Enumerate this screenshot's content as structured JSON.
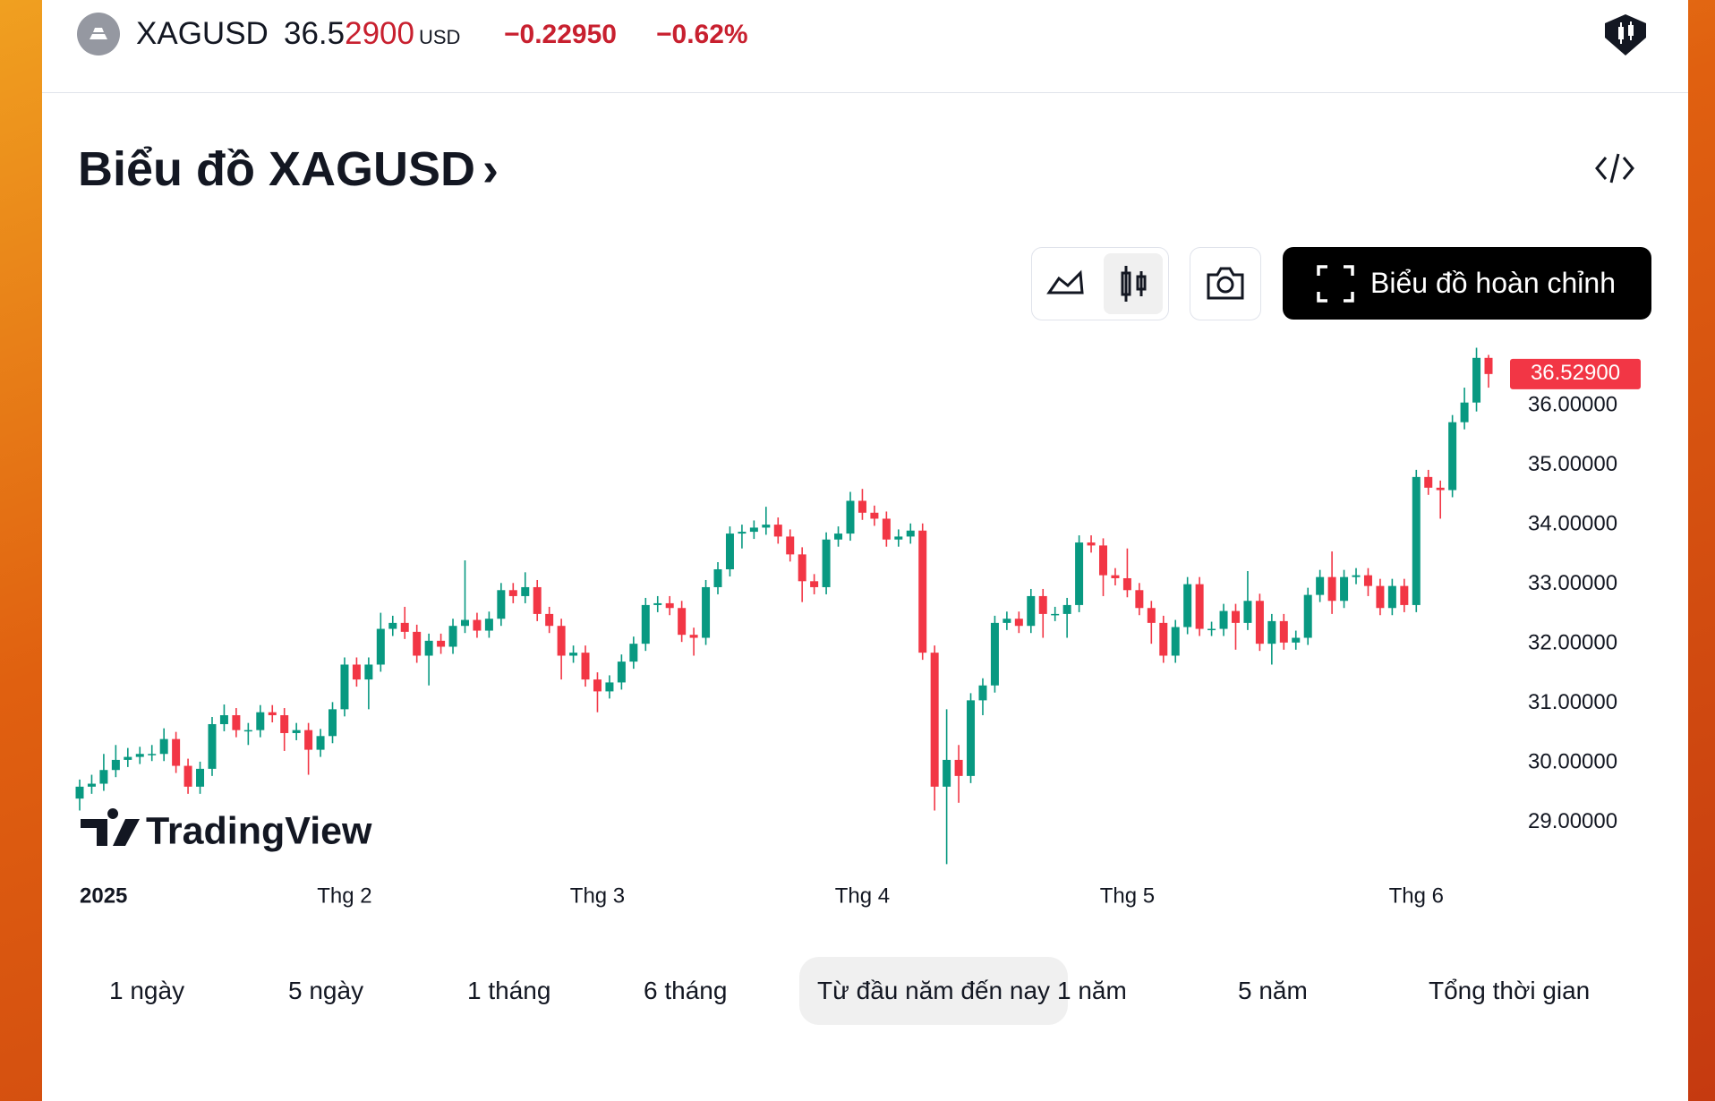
{
  "header": {
    "symbol": "XAGUSD",
    "price_main": "36.5",
    "price_changed": "2900",
    "currency": "USD",
    "change": "−0.22950",
    "change_percent": "−0.62%"
  },
  "title": "Biểu đồ XAGUSD",
  "toolbar": {
    "full_chart_button": "Biểu đồ hoàn chỉnh"
  },
  "watermark": "TradingView",
  "ranges": [
    "1 ngày",
    "5 ngày",
    "1 tháng",
    "6 tháng",
    "Từ đầu năm đến nay",
    "1 năm",
    "5 năm",
    "Tổng thời gian"
  ],
  "selected_range": 4,
  "chart_data": {
    "type": "candlestick",
    "up_color": "#089981",
    "down_color": "#f23645",
    "xticks": [
      {
        "value": 0,
        "label": "2025"
      },
      {
        "value": 22,
        "label": "Thg 2"
      },
      {
        "value": 43,
        "label": "Thg 3"
      },
      {
        "value": 65,
        "label": "Thg 4"
      },
      {
        "value": 87,
        "label": "Thg 5"
      },
      {
        "value": 111,
        "label": "Thg 6"
      }
    ],
    "ylim": [
      28.2,
      37.0
    ],
    "yticks": [
      {
        "value": 29,
        "label": "29.00000"
      },
      {
        "value": 30,
        "label": "30.00000"
      },
      {
        "value": 31,
        "label": "31.00000"
      },
      {
        "value": 32,
        "label": "32.00000"
      },
      {
        "value": 33,
        "label": "33.00000"
      },
      {
        "value": 34,
        "label": "34.00000"
      },
      {
        "value": 35,
        "label": "35.00000"
      },
      {
        "value": 36,
        "label": "36.00000"
      }
    ],
    "last_price_label": "36.52900",
    "series": [
      {
        "name": "XAGUSD",
        "open": [
          29.4,
          29.6,
          29.65,
          29.88,
          30.05,
          30.1,
          30.15,
          30.15,
          30.4,
          29.95,
          29.6,
          29.9,
          30.65,
          30.8,
          30.55,
          30.55,
          30.85,
          30.8,
          30.5,
          30.55,
          30.22,
          30.45,
          30.9,
          31.65,
          31.4,
          31.65,
          32.25,
          32.35,
          32.2,
          31.8,
          32.05,
          31.95,
          32.3,
          32.4,
          32.22,
          32.42,
          32.9,
          32.8,
          32.95,
          32.5,
          32.3,
          31.8,
          31.85,
          31.4,
          31.2,
          31.35,
          31.7,
          32.0,
          32.65,
          32.68,
          32.6,
          32.15,
          32.1,
          32.95,
          33.25,
          33.85,
          33.88,
          33.95,
          34.0,
          33.8,
          33.5,
          33.05,
          32.95,
          33.75,
          33.85,
          34.4,
          34.2,
          34.1,
          33.75,
          33.8,
          33.9,
          31.85,
          29.6,
          30.05,
          29.78,
          31.05,
          31.3,
          32.35,
          32.42,
          32.3,
          32.8,
          32.5,
          32.5,
          32.65,
          33.7,
          33.65,
          33.15,
          33.1,
          32.9,
          32.6,
          32.35,
          31.8,
          32.28,
          33.0,
          32.25,
          32.25,
          32.55,
          32.35,
          32.72,
          32.0,
          32.38,
          32.02,
          32.1,
          32.82,
          33.12,
          32.72,
          33.12,
          33.15,
          32.97,
          32.6,
          32.97,
          32.65,
          34.8,
          34.62,
          34.58,
          35.72,
          36.05,
          36.8
        ],
        "high": [
          29.72,
          29.8,
          30.15,
          30.3,
          30.25,
          30.27,
          30.3,
          30.58,
          30.52,
          30.07,
          30.02,
          30.77,
          30.98,
          30.92,
          30.67,
          30.97,
          30.97,
          30.92,
          30.67,
          30.67,
          30.57,
          31.02,
          31.77,
          31.77,
          31.77,
          32.52,
          32.47,
          32.62,
          32.32,
          32.17,
          32.17,
          32.42,
          33.4,
          32.52,
          32.54,
          33.02,
          33.02,
          33.2,
          33.07,
          32.62,
          32.42,
          31.97,
          31.97,
          31.52,
          31.47,
          31.82,
          32.12,
          32.77,
          32.8,
          32.8,
          32.72,
          32.27,
          33.07,
          33.37,
          33.97,
          34.0,
          34.07,
          34.3,
          34.12,
          33.92,
          33.62,
          33.17,
          33.87,
          33.97,
          34.55,
          34.6,
          34.32,
          34.22,
          33.92,
          34.02,
          34.02,
          31.97,
          30.9,
          30.3,
          31.17,
          31.42,
          32.47,
          32.54,
          32.54,
          32.92,
          32.92,
          32.62,
          32.77,
          33.82,
          33.82,
          33.77,
          33.27,
          33.6,
          33.02,
          32.72,
          32.47,
          32.4,
          33.12,
          33.12,
          32.37,
          32.67,
          32.67,
          33.22,
          32.84,
          32.5,
          32.5,
          32.22,
          32.94,
          33.24,
          33.55,
          33.24,
          33.27,
          33.27,
          33.09,
          33.09,
          33.09,
          34.92,
          34.92,
          34.74,
          35.84,
          36.3,
          36.97,
          36.85
        ],
        "low": [
          29.2,
          29.48,
          29.53,
          29.76,
          29.93,
          29.98,
          30.03,
          30.03,
          29.83,
          29.48,
          29.48,
          29.78,
          30.53,
          30.43,
          30.3,
          30.43,
          30.68,
          30.2,
          30.38,
          29.8,
          30.1,
          30.33,
          30.78,
          31.28,
          30.9,
          31.53,
          32.13,
          32.08,
          31.68,
          31.3,
          31.83,
          31.83,
          32.18,
          32.1,
          32.1,
          32.3,
          32.68,
          32.68,
          32.38,
          32.18,
          31.4,
          31.68,
          31.28,
          30.85,
          31.08,
          31.23,
          31.58,
          31.88,
          32.53,
          32.48,
          32.03,
          31.8,
          31.98,
          32.83,
          33.13,
          33.6,
          33.76,
          33.83,
          33.68,
          33.38,
          32.7,
          32.83,
          32.83,
          33.63,
          33.73,
          34.08,
          33.98,
          33.63,
          33.63,
          33.68,
          31.73,
          29.2,
          28.3,
          29.33,
          29.66,
          30.8,
          31.18,
          32.23,
          32.18,
          32.18,
          32.1,
          32.38,
          32.1,
          32.53,
          33.53,
          32.8,
          32.98,
          32.78,
          32.48,
          32.0,
          31.68,
          31.68,
          32.16,
          32.13,
          32.13,
          32.13,
          31.9,
          32.23,
          31.88,
          31.65,
          31.9,
          31.9,
          31.98,
          32.7,
          32.5,
          32.6,
          33.0,
          32.8,
          32.48,
          32.48,
          32.53,
          32.53,
          34.5,
          34.1,
          34.46,
          35.6,
          35.9,
          36.3
        ],
        "close": [
          29.6,
          29.65,
          29.88,
          30.05,
          30.1,
          30.15,
          30.15,
          30.4,
          29.95,
          29.6,
          29.9,
          30.65,
          30.8,
          30.55,
          30.55,
          30.85,
          30.8,
          30.5,
          30.55,
          30.22,
          30.45,
          30.9,
          31.65,
          31.4,
          31.65,
          32.25,
          32.35,
          32.2,
          31.8,
          32.05,
          31.95,
          32.3,
          32.4,
          32.22,
          32.42,
          32.9,
          32.8,
          32.95,
          32.5,
          32.3,
          31.8,
          31.85,
          31.4,
          31.2,
          31.35,
          31.7,
          32.0,
          32.65,
          32.68,
          32.6,
          32.15,
          32.1,
          32.95,
          33.25,
          33.85,
          33.88,
          33.95,
          34.0,
          33.8,
          33.5,
          33.05,
          32.95,
          33.75,
          33.85,
          34.4,
          34.2,
          34.1,
          33.75,
          33.8,
          33.9,
          31.85,
          29.6,
          30.05,
          29.78,
          31.05,
          31.3,
          32.35,
          32.42,
          32.3,
          32.8,
          32.5,
          32.5,
          32.65,
          33.7,
          33.65,
          33.15,
          33.1,
          32.9,
          32.6,
          32.35,
          31.8,
          32.28,
          33.0,
          32.25,
          32.25,
          32.55,
          32.35,
          32.72,
          32.0,
          32.38,
          32.02,
          32.1,
          32.82,
          33.12,
          32.72,
          33.12,
          33.15,
          32.97,
          32.6,
          32.97,
          32.65,
          34.8,
          34.62,
          34.58,
          35.72,
          36.05,
          36.8,
          36.529
        ]
      }
    ]
  }
}
